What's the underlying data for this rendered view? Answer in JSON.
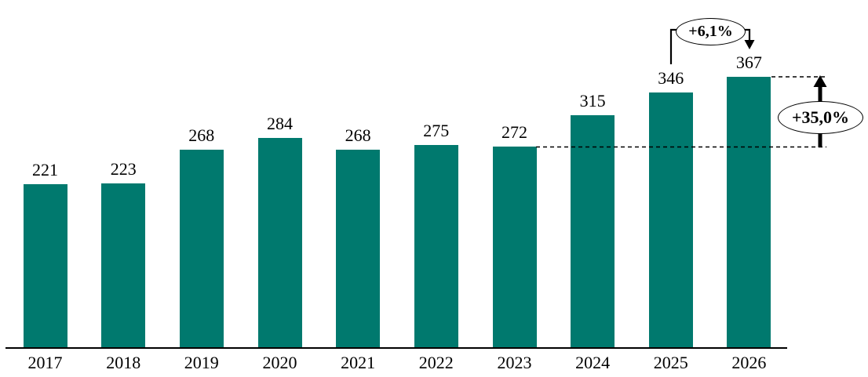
{
  "chart_data": {
    "type": "bar",
    "categories": [
      "2017",
      "2018",
      "2019",
      "2020",
      "2021",
      "2022",
      "2023",
      "2024",
      "2025",
      "2026"
    ],
    "values": [
      221,
      223,
      268,
      284,
      268,
      275,
      272,
      315,
      346,
      367
    ],
    "title": "",
    "xlabel": "",
    "ylabel": "",
    "ylim": [
      0,
      390
    ],
    "bar_color": "#00796E",
    "axis_color": "#000000",
    "grid": false,
    "legend": false,
    "data_labels": true,
    "annotations": [
      {
        "label": "+6,1%"
      },
      {
        "label": "+35,0%"
      }
    ]
  }
}
